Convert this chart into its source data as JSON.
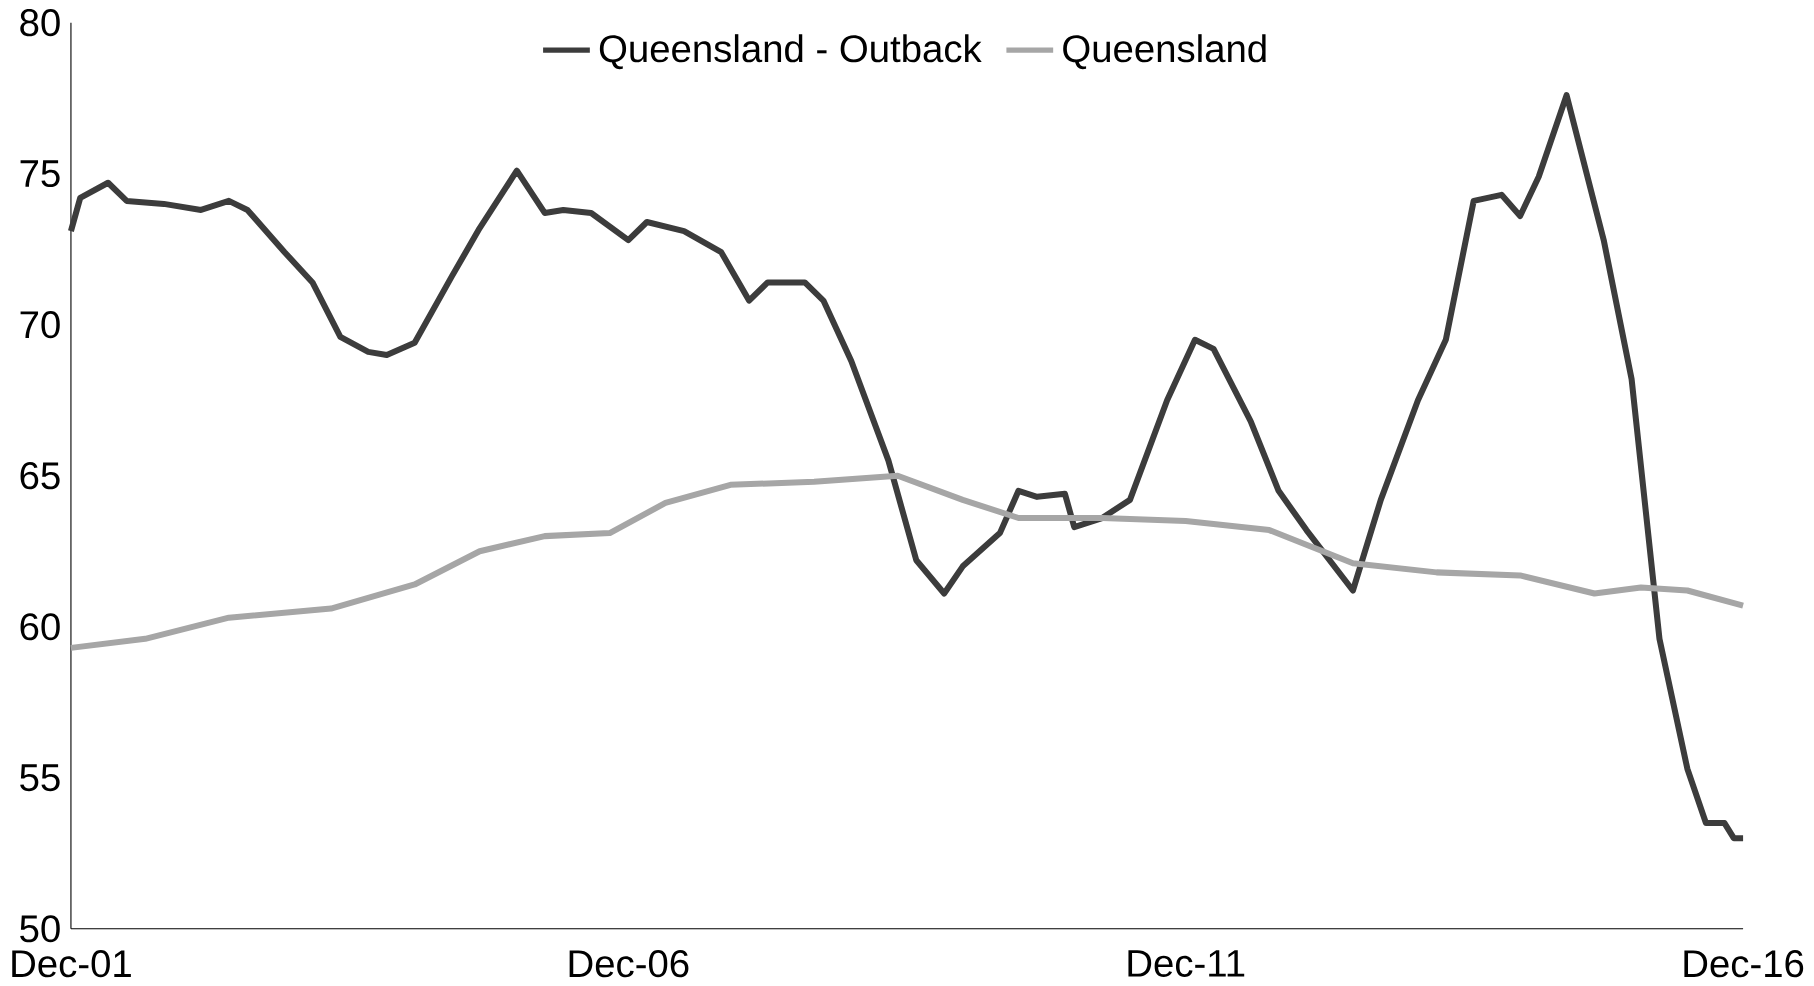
{
  "chart_data": {
    "type": "line",
    "legend": "top",
    "grid": false,
    "marker": "none",
    "line_style": "solid",
    "xlim": [
      "2001-12",
      "2016-12"
    ],
    "xticks": [
      {
        "value": "2001-12",
        "label": "Dec-01"
      },
      {
        "value": "2006-12",
        "label": "Dec-06"
      },
      {
        "value": "2011-12",
        "label": "Dec-11"
      },
      {
        "value": "2016-12",
        "label": "Dec-16"
      }
    ],
    "ylim": [
      50,
      80
    ],
    "yticks": [
      50,
      55,
      60,
      65,
      70,
      75,
      80
    ],
    "series": [
      {
        "name": "Queensland - Outback",
        "color": "#3c3c3c",
        "x": [
          "2001-12",
          "2002-01",
          "2002-04",
          "2002-06",
          "2002-10",
          "2003-02",
          "2003-05",
          "2003-07",
          "2003-11",
          "2004-02",
          "2004-05",
          "2004-08",
          "2004-10",
          "2005-01",
          "2005-05",
          "2005-08",
          "2005-12",
          "2006-03",
          "2006-05",
          "2006-08",
          "2006-12",
          "2007-02",
          "2007-06",
          "2007-10",
          "2008-01",
          "2008-03",
          "2008-07",
          "2008-09",
          "2008-12",
          "2009-04",
          "2009-07",
          "2009-10",
          "2009-12",
          "2010-04",
          "2010-06",
          "2010-08",
          "2010-11",
          "2010-12",
          "2011-03",
          "2011-06",
          "2011-10",
          "2012-01",
          "2012-03",
          "2012-07",
          "2012-10",
          "2013-01",
          "2013-06",
          "2013-09",
          "2014-01",
          "2014-04",
          "2014-07",
          "2014-10",
          "2014-12",
          "2015-02",
          "2015-05",
          "2015-09",
          "2015-12",
          "2016-03",
          "2016-06",
          "2016-08",
          "2016-10",
          "2016-11",
          "2016-12"
        ],
        "values": [
          73.1,
          74.2,
          74.7,
          74.1,
          74.0,
          73.8,
          74.1,
          73.8,
          72.4,
          71.4,
          69.6,
          69.1,
          69.0,
          69.4,
          71.6,
          73.2,
          75.1,
          73.7,
          73.8,
          73.7,
          72.8,
          73.4,
          73.1,
          72.4,
          70.8,
          71.4,
          71.4,
          70.8,
          68.8,
          65.5,
          62.2,
          61.1,
          62.0,
          63.1,
          64.5,
          64.3,
          64.4,
          63.3,
          63.6,
          64.2,
          67.5,
          69.5,
          69.2,
          66.8,
          64.5,
          63.2,
          61.2,
          64.2,
          67.5,
          69.5,
          74.1,
          74.3,
          73.6,
          74.9,
          77.6,
          72.8,
          68.2,
          59.6,
          55.3,
          53.5,
          53.5,
          53.0,
          53.0
        ]
      },
      {
        "name": "Queensland",
        "color": "#a6a6a6",
        "x": [
          "2001-12",
          "2002-08",
          "2003-05",
          "2004-04",
          "2005-01",
          "2005-08",
          "2006-03",
          "2006-10",
          "2007-04",
          "2007-11",
          "2008-08",
          "2009-05",
          "2009-12",
          "2010-06",
          "2011-03",
          "2011-12",
          "2012-09",
          "2013-06",
          "2014-03",
          "2014-12",
          "2015-08",
          "2016-01",
          "2016-06",
          "2016-12"
        ],
        "values": [
          59.3,
          59.6,
          60.3,
          60.6,
          61.4,
          62.5,
          63.0,
          63.1,
          64.1,
          64.7,
          64.8,
          65.0,
          64.2,
          63.6,
          63.6,
          63.5,
          63.2,
          62.1,
          61.8,
          61.7,
          61.1,
          61.3,
          61.2,
          60.7
        ]
      }
    ]
  }
}
